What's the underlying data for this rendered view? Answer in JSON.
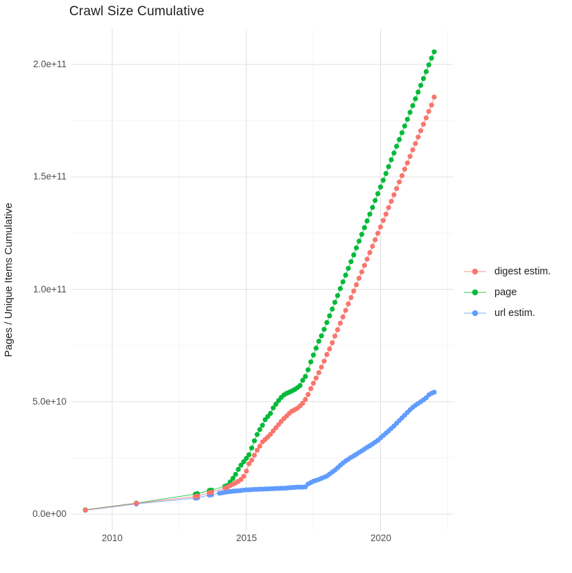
{
  "chart_data": {
    "type": "line",
    "subtype": "line+points",
    "title": "Crawl Size Cumulative",
    "xlabel": "",
    "ylabel": "Pages / Unique Items Cumulative",
    "legend_position": "right-center",
    "grid": "major and minor, light gray on white panel",
    "x_ticks": [
      {
        "label": "2010",
        "year": 2010
      },
      {
        "label": "2015",
        "year": 2015
      },
      {
        "label": "2020",
        "year": 2020
      }
    ],
    "y_ticks": [
      {
        "label": "2.0e+11",
        "value": 200
      },
      {
        "label": "1.5e+11",
        "value": 150
      },
      {
        "label": "1.0e+11",
        "value": 100
      },
      {
        "label": "5.0e+10",
        "value": 50
      },
      {
        "label": "0.0e+00",
        "value": 0
      }
    ],
    "x_range_years": [
      2008.5,
      2022.7
    ],
    "y_range_billions": [
      0,
      216
    ],
    "value_unit_note": "point values are in units of 1e9 (billions); x is decimal year",
    "series": [
      {
        "name": "digest estim.",
        "color": "#F8766D",
        "points": [
          [
            2009.0,
            1.8
          ],
          [
            2010.9,
            4.8
          ],
          [
            2013.1,
            7.8
          ],
          [
            2013.18,
            8.0
          ],
          [
            2013.62,
            9.5
          ],
          [
            2013.7,
            9.7
          ],
          [
            2014.2,
            11.6
          ],
          [
            2014.3,
            12.0
          ],
          [
            2014.4,
            12.7
          ],
          [
            2014.5,
            13.3
          ],
          [
            2014.6,
            13.9
          ],
          [
            2014.7,
            14.6
          ],
          [
            2014.8,
            15.4
          ],
          [
            2014.9,
            16.8
          ],
          [
            2015.0,
            19.1
          ],
          [
            2015.1,
            22.4
          ],
          [
            2015.2,
            24.0
          ],
          [
            2015.3,
            26.2
          ],
          [
            2015.4,
            28.4
          ],
          [
            2015.5,
            30.2
          ],
          [
            2015.6,
            32.1
          ],
          [
            2015.7,
            33.2
          ],
          [
            2015.8,
            34.3
          ],
          [
            2015.9,
            35.5
          ],
          [
            2016.0,
            37.0
          ],
          [
            2016.1,
            38.4
          ],
          [
            2016.2,
            39.8
          ],
          [
            2016.3,
            41.2
          ],
          [
            2016.4,
            42.5
          ],
          [
            2016.5,
            43.6
          ],
          [
            2016.6,
            44.8
          ],
          [
            2016.7,
            45.8
          ],
          [
            2016.8,
            46.4
          ],
          [
            2016.9,
            47.1
          ],
          [
            2017.0,
            48.1
          ],
          [
            2017.1,
            49.3
          ],
          [
            2017.2,
            51.0
          ],
          [
            2017.3,
            53.2
          ],
          [
            2017.4,
            55.8
          ],
          [
            2017.5,
            58.2
          ],
          [
            2017.6,
            60.5
          ],
          [
            2017.7,
            62.9
          ],
          [
            2017.8,
            65.4
          ],
          [
            2017.9,
            68.0
          ],
          [
            2018.0,
            71.0
          ],
          [
            2018.1,
            73.5
          ],
          [
            2018.2,
            76.2
          ],
          [
            2018.3,
            79.2
          ],
          [
            2018.4,
            82.0
          ],
          [
            2018.5,
            84.9
          ],
          [
            2018.6,
            87.7
          ],
          [
            2018.7,
            90.6
          ],
          [
            2018.8,
            93.5
          ],
          [
            2018.9,
            96.3
          ],
          [
            2019.0,
            99.2
          ],
          [
            2019.1,
            102.0
          ],
          [
            2019.2,
            104.9
          ],
          [
            2019.3,
            107.7
          ],
          [
            2019.4,
            110.6
          ],
          [
            2019.5,
            113.4
          ],
          [
            2019.6,
            116.3
          ],
          [
            2019.7,
            119.1
          ],
          [
            2019.8,
            122.0
          ],
          [
            2019.9,
            124.9
          ],
          [
            2020.0,
            127.7
          ],
          [
            2020.1,
            130.6
          ],
          [
            2020.2,
            133.4
          ],
          [
            2020.3,
            136.3
          ],
          [
            2020.4,
            139.1
          ],
          [
            2020.5,
            142.0
          ],
          [
            2020.6,
            144.8
          ],
          [
            2020.7,
            147.7
          ],
          [
            2020.8,
            150.5
          ],
          [
            2020.9,
            153.4
          ],
          [
            2021.0,
            156.2
          ],
          [
            2021.1,
            159.1
          ],
          [
            2021.2,
            162.0
          ],
          [
            2021.3,
            164.8
          ],
          [
            2021.4,
            167.7
          ],
          [
            2021.5,
            170.5
          ],
          [
            2021.6,
            173.4
          ],
          [
            2021.7,
            176.2
          ],
          [
            2021.8,
            179.1
          ],
          [
            2021.9,
            181.9
          ],
          [
            2022.0,
            185.5
          ]
        ]
      },
      {
        "name": "page",
        "color": "#00BA38",
        "points": [
          [
            2009.0,
            1.9
          ],
          [
            2010.9,
            4.9
          ],
          [
            2013.1,
            8.9
          ],
          [
            2013.18,
            9.1
          ],
          [
            2013.62,
            10.5
          ],
          [
            2013.7,
            10.7
          ],
          [
            2014.2,
            12.4
          ],
          [
            2014.3,
            12.8
          ],
          [
            2014.4,
            14.3
          ],
          [
            2014.5,
            15.9
          ],
          [
            2014.6,
            17.7
          ],
          [
            2014.7,
            19.9
          ],
          [
            2014.8,
            21.8
          ],
          [
            2014.9,
            23.3
          ],
          [
            2015.0,
            24.8
          ],
          [
            2015.1,
            26.4
          ],
          [
            2015.2,
            29.4
          ],
          [
            2015.3,
            32.6
          ],
          [
            2015.4,
            35.4
          ],
          [
            2015.5,
            37.6
          ],
          [
            2015.6,
            39.5
          ],
          [
            2015.7,
            42.0
          ],
          [
            2015.8,
            43.4
          ],
          [
            2015.9,
            44.8
          ],
          [
            2016.0,
            47.2
          ],
          [
            2016.1,
            48.9
          ],
          [
            2016.2,
            50.5
          ],
          [
            2016.3,
            51.9
          ],
          [
            2016.4,
            53.0
          ],
          [
            2016.5,
            53.7
          ],
          [
            2016.6,
            54.2
          ],
          [
            2016.7,
            54.8
          ],
          [
            2016.8,
            55.4
          ],
          [
            2016.9,
            56.2
          ],
          [
            2017.0,
            57.2
          ],
          [
            2017.1,
            59.5
          ],
          [
            2017.2,
            61.2
          ],
          [
            2017.3,
            64.2
          ],
          [
            2017.4,
            67.7
          ],
          [
            2017.5,
            70.8
          ],
          [
            2017.6,
            73.8
          ],
          [
            2017.7,
            76.9
          ],
          [
            2017.8,
            79.3
          ],
          [
            2017.9,
            82.2
          ],
          [
            2018.0,
            85.2
          ],
          [
            2018.1,
            88.2
          ],
          [
            2018.2,
            91.2
          ],
          [
            2018.3,
            94.2
          ],
          [
            2018.4,
            97.2
          ],
          [
            2018.5,
            100.3
          ],
          [
            2018.6,
            103.3
          ],
          [
            2018.7,
            106.3
          ],
          [
            2018.8,
            109.3
          ],
          [
            2018.9,
            112.3
          ],
          [
            2019.0,
            115.3
          ],
          [
            2019.1,
            118.4
          ],
          [
            2019.2,
            121.4
          ],
          [
            2019.3,
            124.4
          ],
          [
            2019.4,
            127.4
          ],
          [
            2019.5,
            130.4
          ],
          [
            2019.6,
            133.4
          ],
          [
            2019.7,
            136.4
          ],
          [
            2019.8,
            139.5
          ],
          [
            2019.9,
            142.5
          ],
          [
            2020.0,
            145.5
          ],
          [
            2020.1,
            148.5
          ],
          [
            2020.2,
            151.5
          ],
          [
            2020.3,
            154.5
          ],
          [
            2020.4,
            157.6
          ],
          [
            2020.5,
            160.6
          ],
          [
            2020.6,
            163.6
          ],
          [
            2020.7,
            166.6
          ],
          [
            2020.8,
            169.6
          ],
          [
            2020.9,
            172.6
          ],
          [
            2021.0,
            175.6
          ],
          [
            2021.1,
            178.7
          ],
          [
            2021.2,
            181.7
          ],
          [
            2021.3,
            184.7
          ],
          [
            2021.4,
            187.7
          ],
          [
            2021.5,
            190.7
          ],
          [
            2021.6,
            193.7
          ],
          [
            2021.7,
            196.8
          ],
          [
            2021.8,
            199.8
          ],
          [
            2021.9,
            202.8
          ],
          [
            2022.0,
            205.6
          ]
        ]
      },
      {
        "name": "url estim.",
        "color": "#619CFF",
        "points": [
          [
            2009.0,
            1.7
          ],
          [
            2010.9,
            4.5
          ],
          [
            2013.1,
            7.1
          ],
          [
            2013.18,
            7.2
          ],
          [
            2013.62,
            8.5
          ],
          [
            2013.7,
            8.6
          ],
          [
            2014.0,
            9.3
          ],
          [
            2014.1,
            9.5
          ],
          [
            2014.2,
            9.7
          ],
          [
            2014.3,
            9.9
          ],
          [
            2014.4,
            10.0
          ],
          [
            2014.5,
            10.2
          ],
          [
            2014.6,
            10.3
          ],
          [
            2014.7,
            10.4
          ],
          [
            2014.8,
            10.5
          ],
          [
            2014.9,
            10.7
          ],
          [
            2015.0,
            10.8
          ],
          [
            2015.1,
            10.8
          ],
          [
            2015.2,
            10.9
          ],
          [
            2015.3,
            11.0
          ],
          [
            2015.4,
            11.0
          ],
          [
            2015.5,
            11.1
          ],
          [
            2015.6,
            11.1
          ],
          [
            2015.7,
            11.2
          ],
          [
            2015.8,
            11.2
          ],
          [
            2015.9,
            11.3
          ],
          [
            2016.0,
            11.3
          ],
          [
            2016.1,
            11.4
          ],
          [
            2016.2,
            11.4
          ],
          [
            2016.3,
            11.5
          ],
          [
            2016.4,
            11.5
          ],
          [
            2016.5,
            11.6
          ],
          [
            2016.6,
            11.7
          ],
          [
            2016.7,
            11.8
          ],
          [
            2016.8,
            11.9
          ],
          [
            2016.9,
            12.0
          ],
          [
            2017.0,
            12.0
          ],
          [
            2017.1,
            12.0
          ],
          [
            2017.2,
            12.1
          ],
          [
            2017.3,
            13.4
          ],
          [
            2017.4,
            14.0
          ],
          [
            2017.5,
            14.6
          ],
          [
            2017.6,
            15.0
          ],
          [
            2017.7,
            15.4
          ],
          [
            2017.8,
            15.9
          ],
          [
            2017.9,
            16.4
          ],
          [
            2018.0,
            16.9
          ],
          [
            2018.1,
            17.8
          ],
          [
            2018.2,
            18.7
          ],
          [
            2018.3,
            19.5
          ],
          [
            2018.4,
            20.6
          ],
          [
            2018.5,
            21.7
          ],
          [
            2018.6,
            22.7
          ],
          [
            2018.7,
            23.6
          ],
          [
            2018.8,
            24.4
          ],
          [
            2018.9,
            25.2
          ],
          [
            2019.0,
            25.9
          ],
          [
            2019.1,
            26.6
          ],
          [
            2019.2,
            27.4
          ],
          [
            2019.3,
            28.1
          ],
          [
            2019.4,
            28.9
          ],
          [
            2019.5,
            29.7
          ],
          [
            2019.6,
            30.4
          ],
          [
            2019.7,
            31.2
          ],
          [
            2019.8,
            32.0
          ],
          [
            2019.9,
            32.8
          ],
          [
            2020.0,
            33.9
          ],
          [
            2020.1,
            34.9
          ],
          [
            2020.2,
            36.0
          ],
          [
            2020.3,
            37.0
          ],
          [
            2020.4,
            38.1
          ],
          [
            2020.5,
            39.2
          ],
          [
            2020.6,
            40.4
          ],
          [
            2020.7,
            41.6
          ],
          [
            2020.8,
            42.8
          ],
          [
            2020.9,
            44.0
          ],
          [
            2021.0,
            45.2
          ],
          [
            2021.1,
            46.4
          ],
          [
            2021.2,
            47.5
          ],
          [
            2021.3,
            48.4
          ],
          [
            2021.4,
            49.2
          ],
          [
            2021.5,
            50.0
          ],
          [
            2021.6,
            50.8
          ],
          [
            2021.7,
            51.7
          ],
          [
            2021.8,
            53.0
          ],
          [
            2021.9,
            53.7
          ],
          [
            2022.0,
            54.2
          ]
        ]
      }
    ]
  }
}
